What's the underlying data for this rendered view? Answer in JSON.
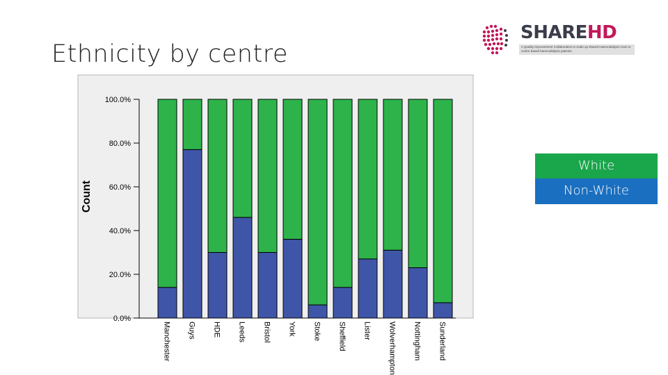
{
  "slide": {
    "title": "Ethnicity by centre"
  },
  "logo": {
    "word_share": "SHARE",
    "word_hd": "HD",
    "tagline": "A Quality Improvement Collaborative to scale up shared Haemodialysis Care in centre based haemodialysis patients"
  },
  "legend": {
    "white": "White",
    "non_white": "Non-White"
  },
  "colors": {
    "white": "#2db34a",
    "non_white": "#3f56a8",
    "plot_bg": "#efefef",
    "plot_border": "#b5b5b5"
  },
  "chart_data": {
    "type": "bar",
    "stacked": true,
    "ylabel": "Count",
    "xlabel": "",
    "ylim": [
      0,
      100
    ],
    "yticks": [
      "0.0%",
      "20.0%",
      "40.0%",
      "60.0%",
      "80.0%",
      "100.0%"
    ],
    "categories": [
      "Manchester",
      "Guys",
      "HDE",
      "Leeds",
      "Bristol",
      "York",
      "Stoke",
      "Sheffield",
      "Lister",
      "Wolverhampton",
      "Nottingham",
      "Sunderland"
    ],
    "series": [
      {
        "name": "Non-White",
        "values": [
          14,
          77,
          30,
          46,
          30,
          36,
          6,
          14,
          27,
          31,
          23,
          7
        ]
      },
      {
        "name": "White",
        "values": [
          86,
          23,
          70,
          54,
          70,
          64,
          94,
          86,
          73,
          69,
          77,
          93
        ]
      }
    ]
  }
}
